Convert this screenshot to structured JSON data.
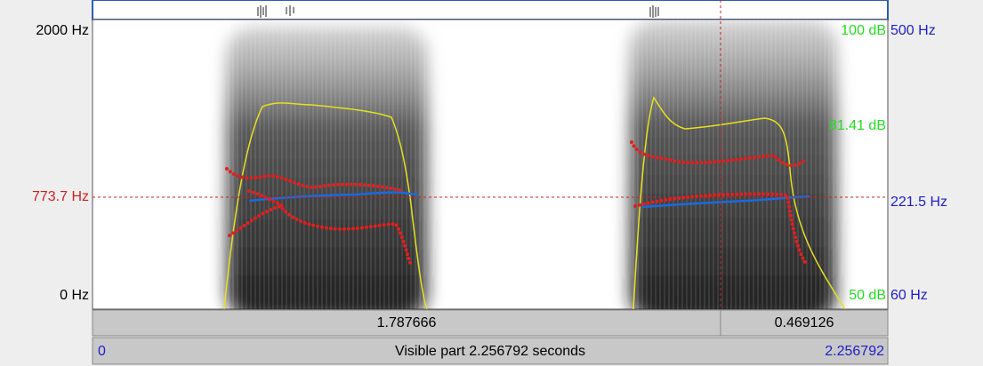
{
  "frequency_axis": {
    "top": "2000 Hz",
    "cursor": "773.7 Hz",
    "bottom": "0 Hz"
  },
  "intensity_axis": {
    "top": "100 dB",
    "cursor": "81.41 dB",
    "bottom": "50 dB"
  },
  "pitch_axis": {
    "top": "500 Hz",
    "cursor": "221.5 Hz",
    "bottom": "60 Hz"
  },
  "selection_bar": {
    "left": "1.787666",
    "right": "0.469126"
  },
  "visible_bar": {
    "start": "0",
    "label": "Visible part 2.256792 seconds",
    "end": "2.256792"
  }
}
